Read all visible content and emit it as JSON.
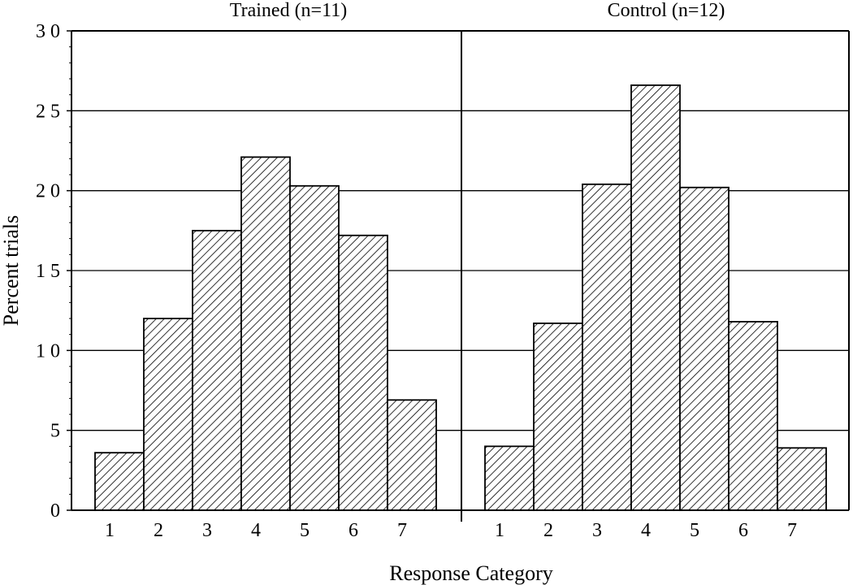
{
  "chart_data": [
    {
      "type": "bar",
      "title": "Trained   (n=11)",
      "categories": [
        "1",
        "2",
        "3",
        "4",
        "5",
        "6",
        "7"
      ],
      "values": [
        3.6,
        12.0,
        17.5,
        22.1,
        20.3,
        17.2,
        6.9
      ],
      "ylim": [
        0,
        30
      ]
    },
    {
      "type": "bar",
      "title": "Control   (n=12)",
      "categories": [
        "1",
        "2",
        "3",
        "4",
        "5",
        "6",
        "7"
      ],
      "values": [
        4.0,
        11.7,
        20.4,
        26.6,
        20.2,
        11.8,
        3.9
      ],
      "ylim": [
        0,
        30
      ]
    }
  ],
  "axes": {
    "ylabel": "Percent trials",
    "xlabel": "Response   Category",
    "y_ticks": [
      {
        "value": 0,
        "label": "0"
      },
      {
        "value": 5,
        "label": "5"
      },
      {
        "value": 10,
        "label": "1 0"
      },
      {
        "value": 15,
        "label": "1 5"
      },
      {
        "value": 20,
        "label": "2 0"
      },
      {
        "value": 25,
        "label": "2 5"
      },
      {
        "value": 30,
        "label": "3 0"
      }
    ],
    "grid": true
  },
  "style": {
    "bar_stroke": "#000000",
    "hatch_color": "#000000",
    "background": "#ffffff"
  }
}
